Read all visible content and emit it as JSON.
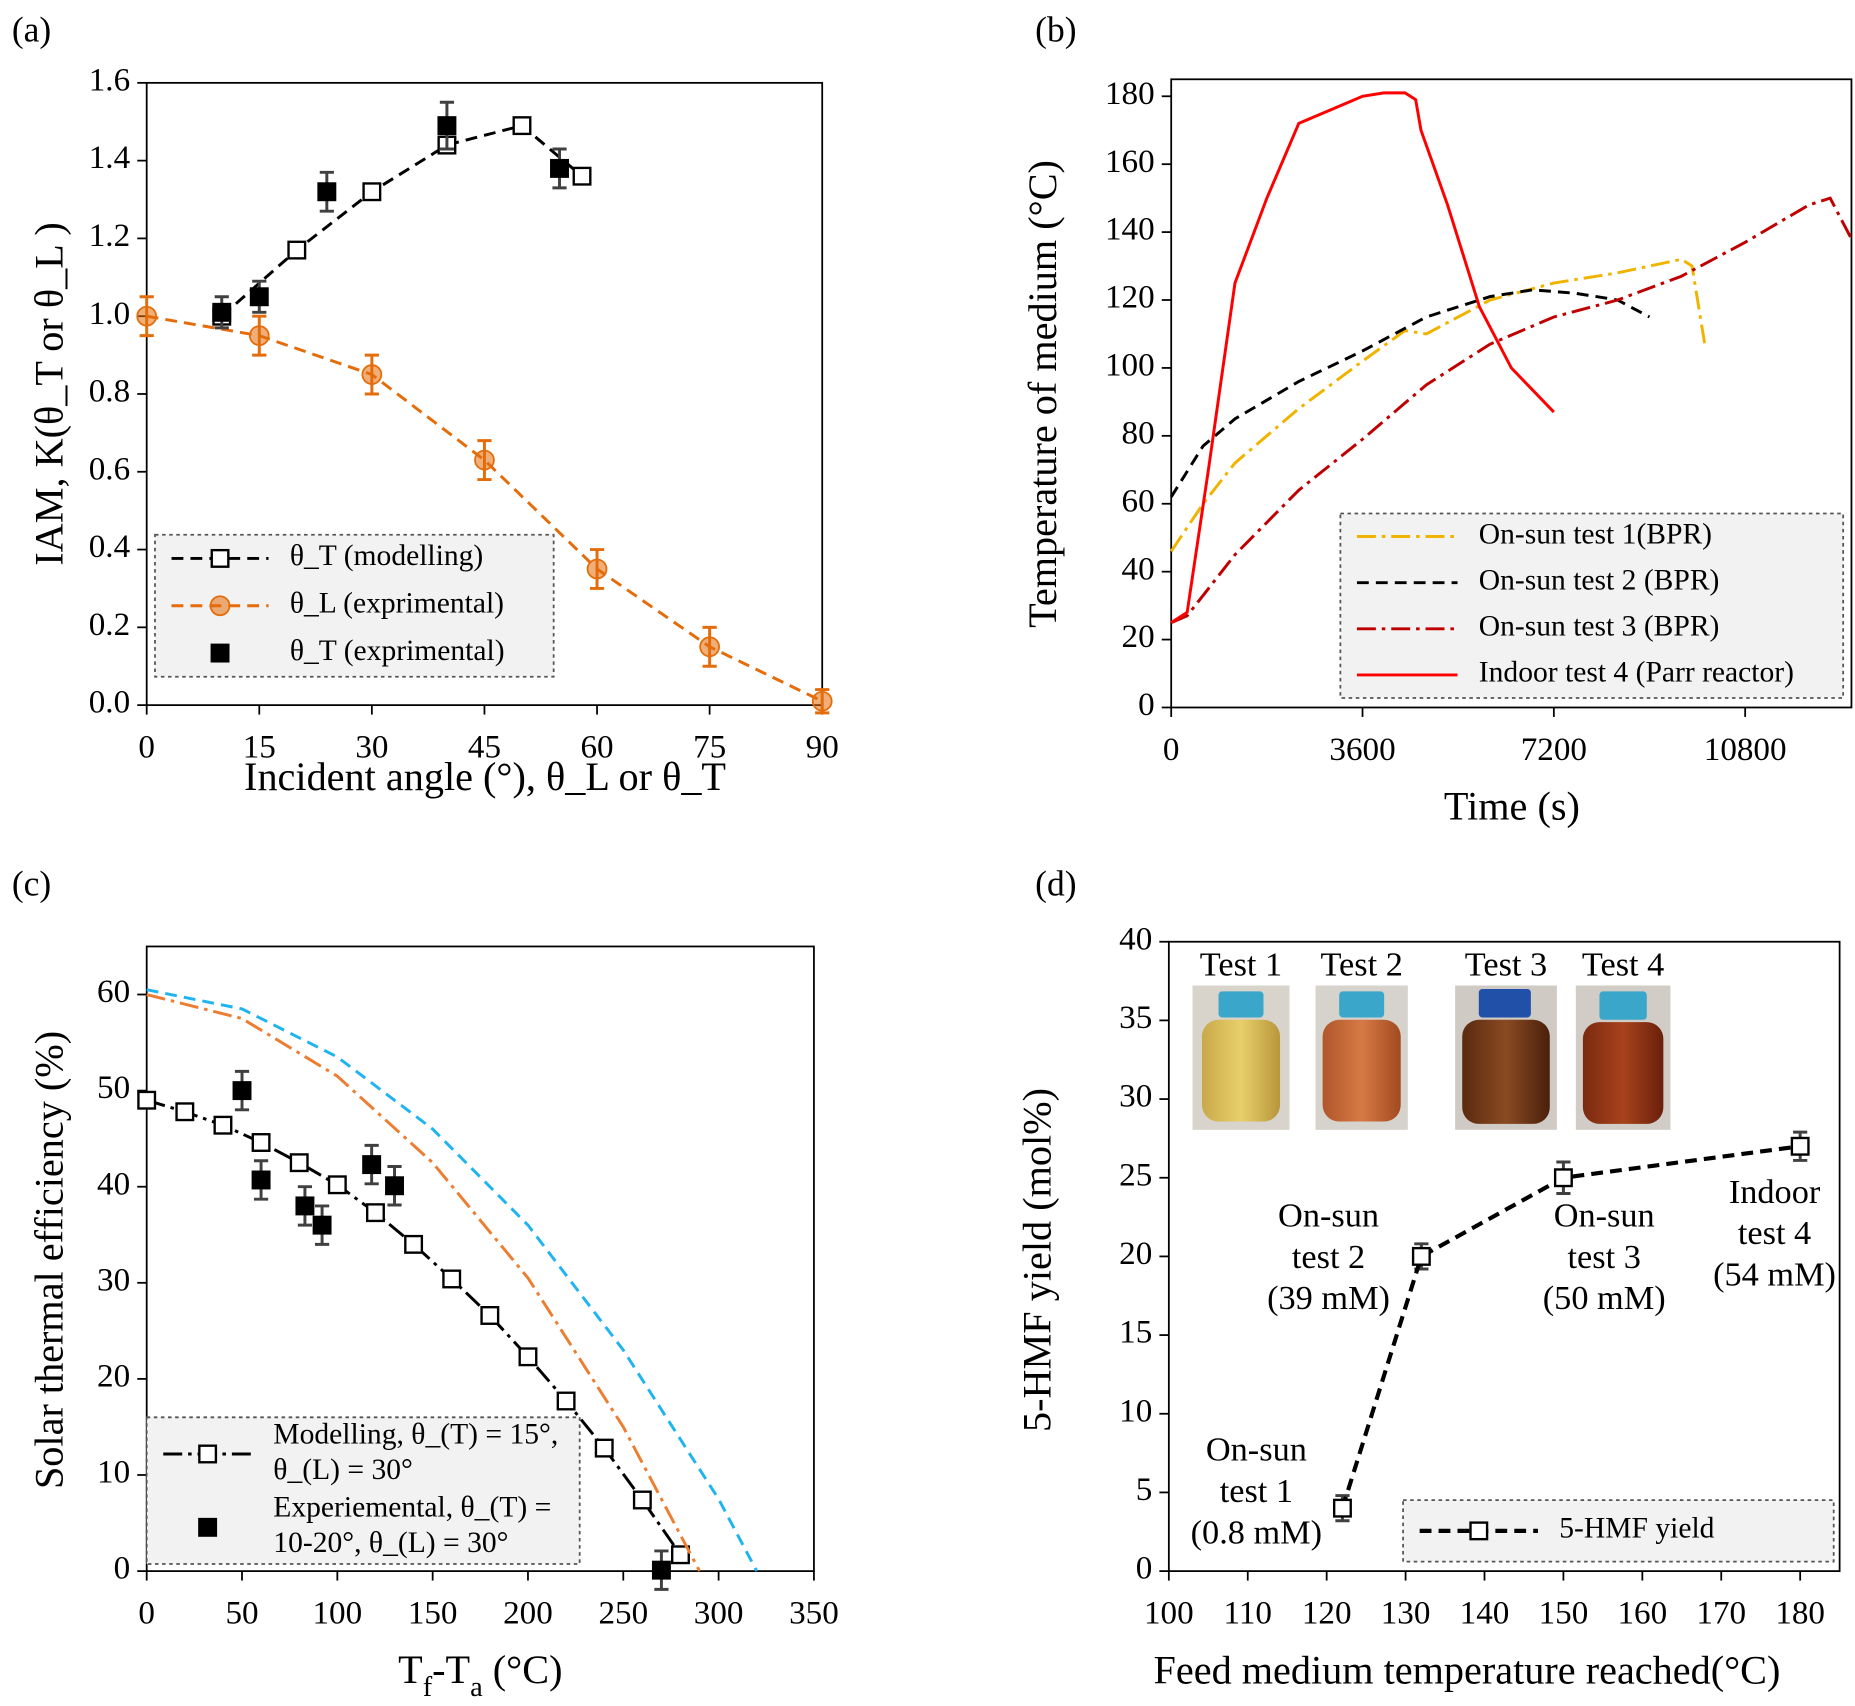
{
  "chart_data": [
    {
      "type": "line",
      "label": "(a)",
      "xlabel": "Incident angle (°), θ_L  or θ_T",
      "ylabel": "IAM, K(θ_T or θ_L )",
      "xlim": [
        0,
        90
      ],
      "ylim": [
        0,
        1.6
      ],
      "xticks": [
        0,
        15,
        30,
        45,
        60,
        75,
        90
      ],
      "yticks": [
        {
          "value": 0,
          "label": "0.0"
        },
        0.2,
        0.4,
        0.6,
        0.8,
        {
          "value": 1,
          "label": "1.0"
        },
        1.2,
        1.4,
        1.6
      ],
      "legend": "lower left",
      "series": [
        {
          "name": "θ_T (modelling)",
          "color": "#000000",
          "line": "dashed",
          "marker": "open-square",
          "x": [
            10,
            20,
            30,
            40,
            50,
            58
          ],
          "values": [
            1.0,
            1.17,
            1.32,
            1.44,
            1.49,
            1.36
          ]
        },
        {
          "name": "θ_L (exprimental)",
          "color": "#e46c0a",
          "line": "dashed",
          "marker": "circle",
          "x": [
            0,
            15,
            30,
            45,
            60,
            75,
            90
          ],
          "values": [
            1.0,
            0.95,
            0.85,
            0.63,
            0.35,
            0.15,
            0.01
          ],
          "errors": [
            0.05,
            0.05,
            0.05,
            0.05,
            0.05,
            0.05,
            0.03
          ],
          "error_color": "#e46c0a"
        },
        {
          "name": "θ_T (exprimental)",
          "color": "#000000",
          "line": "none",
          "marker": "filled-square",
          "x": [
            10,
            15,
            24,
            40,
            55
          ],
          "values": [
            1.01,
            1.05,
            1.32,
            1.49,
            1.38
          ],
          "errors": [
            0.04,
            0.04,
            0.05,
            0.06,
            0.05
          ],
          "error_color": "#404040"
        }
      ]
    },
    {
      "type": "line",
      "label": "(b)",
      "xlabel": "Time (s)",
      "ylabel": "Temperature of  medium (°C)",
      "xlim": [
        0,
        12800
      ],
      "ylim": [
        0,
        185
      ],
      "xticks": [
        0,
        3600,
        7200,
        10800
      ],
      "yticks": [
        0,
        20,
        40,
        60,
        80,
        100,
        120,
        140,
        160,
        180
      ],
      "legend": "lower right",
      "series": [
        {
          "name": "On-sun test 1(BPR)",
          "color": "#f0b400",
          "line": "dashdot",
          "marker": "none",
          "x": [
            0,
            600,
            1200,
            2400,
            3600,
            4400,
            4800,
            5400,
            6000,
            7200,
            8400,
            9600,
            9800,
            10050
          ],
          "values": [
            46,
            60,
            72,
            88,
            102,
            111,
            110,
            115,
            120,
            125,
            128,
            132,
            130,
            106
          ]
        },
        {
          "name": "On-sun test 2 (BPR)",
          "color": "#000000",
          "line": "dashed",
          "marker": "none",
          "x": [
            0,
            600,
            1200,
            2400,
            3600,
            4800,
            6000,
            6800,
            7600,
            8400,
            9000
          ],
          "values": [
            62,
            77,
            85,
            96,
            105,
            115,
            121,
            123,
            122,
            120,
            115
          ]
        },
        {
          "name": "On-sun test 3 (BPR)",
          "color": "#c00000",
          "line": "dashdot",
          "marker": "none",
          "x": [
            0,
            300,
            1200,
            2400,
            3600,
            4800,
            6000,
            7200,
            8400,
            9600,
            10800,
            12000,
            12400,
            12800
          ],
          "values": [
            25,
            27,
            45,
            64,
            79,
            95,
            107,
            115,
            120,
            127,
            137,
            148,
            150,
            138
          ]
        },
        {
          "name": "Indoor test 4 (Parr reactor)",
          "color": "#ff0000",
          "line": "solid",
          "marker": "none",
          "x": [
            0,
            300,
            700,
            1200,
            1800,
            2400,
            3000,
            3600,
            4000,
            4400,
            4600,
            4700,
            5200,
            5800,
            6400,
            7200
          ],
          "values": [
            25,
            28,
            70,
            125,
            150,
            172,
            176,
            180,
            181,
            181,
            179,
            170,
            148,
            118,
            100,
            87
          ]
        }
      ]
    },
    {
      "type": "line",
      "label": "(c)",
      "xlabel": [
        "T",
        "f",
        "-T",
        "a",
        " (°C)"
      ],
      "ylabel": "Solar thermal efficiency (%)",
      "xlim": [
        0,
        350
      ],
      "ylim": [
        0,
        65
      ],
      "xticks": [
        0,
        50,
        100,
        150,
        200,
        250,
        300,
        350
      ],
      "yticks": [
        0,
        10,
        20,
        30,
        40,
        50,
        60
      ],
      "legend": "lower left",
      "series": [
        {
          "name": "Modelling, θ_(T) = 15°, θ_(L) = 30°",
          "color": "#000000",
          "line": "dashdot",
          "marker": "open-square",
          "x": [
            0,
            20,
            40,
            60,
            80,
            100,
            120,
            140,
            160,
            180,
            200,
            220,
            240,
            260,
            280
          ],
          "values": [
            49,
            47.8,
            46.4,
            44.6,
            42.5,
            40.2,
            37.3,
            34,
            30.4,
            26.6,
            22.3,
            17.7,
            12.8,
            7.4,
            1.7
          ]
        },
        {
          "name": "Experiemental, θ_(T) = 10-20°, θ_(L) = 30°",
          "color": "#000000",
          "line": "none",
          "marker": "filled-square",
          "x": [
            50,
            60,
            83,
            92,
            118,
            130,
            270
          ],
          "values": [
            50,
            40.7,
            38,
            36,
            42.3,
            40.1,
            0.1
          ],
          "errors": [
            2,
            2,
            2,
            2,
            2,
            2,
            2
          ],
          "error_color": "#404040"
        },
        {
          "color": "#1fb4f0",
          "line": "dashed",
          "marker": "none",
          "x": [
            0,
            50,
            100,
            150,
            200,
            250,
            300,
            320
          ],
          "values": [
            60.5,
            58.5,
            53.5,
            46,
            36,
            23,
            7.5,
            0
          ]
        },
        {
          "color": "#ed7d31",
          "line": "dashdot",
          "marker": "none",
          "x": [
            0,
            50,
            100,
            150,
            200,
            250,
            290
          ],
          "values": [
            60,
            57.5,
            51.5,
            42.5,
            30.5,
            15,
            0
          ]
        }
      ]
    },
    {
      "type": "line",
      "label": "(d)",
      "xlabel": "Feed medium temperature reached(°C)",
      "ylabel": "5-HMF yield (mol%)",
      "xlim": [
        100,
        185
      ],
      "ylim": [
        0,
        40
      ],
      "xticks": [
        100,
        110,
        120,
        130,
        140,
        150,
        160,
        170,
        180
      ],
      "yticks": [
        0,
        5,
        10,
        15,
        20,
        25,
        30,
        35,
        40
      ],
      "legend": "lower right",
      "series": [
        {
          "name": "5-HMF yield",
          "color": "#000000",
          "line": "dashed",
          "marker": "open-square",
          "x": [
            122,
            132,
            150,
            180
          ],
          "values": [
            4,
            20,
            25,
            27
          ],
          "errors": [
            0.8,
            0.8,
            1,
            0.9
          ],
          "error_color": "#404040"
        }
      ],
      "annotations": [
        [
          "On-sun",
          "test 1",
          "(0.8 mM)"
        ],
        [
          "On-sun",
          "test 2",
          "(39 mM)"
        ],
        [
          "On-sun",
          "test 3",
          "(50 mM)"
        ],
        [
          "Indoor",
          "test 4",
          "(54 mM)"
        ]
      ],
      "photo_labels": [
        "Test 1",
        "Test 2",
        "Test 3",
        "Test 4"
      ]
    }
  ]
}
